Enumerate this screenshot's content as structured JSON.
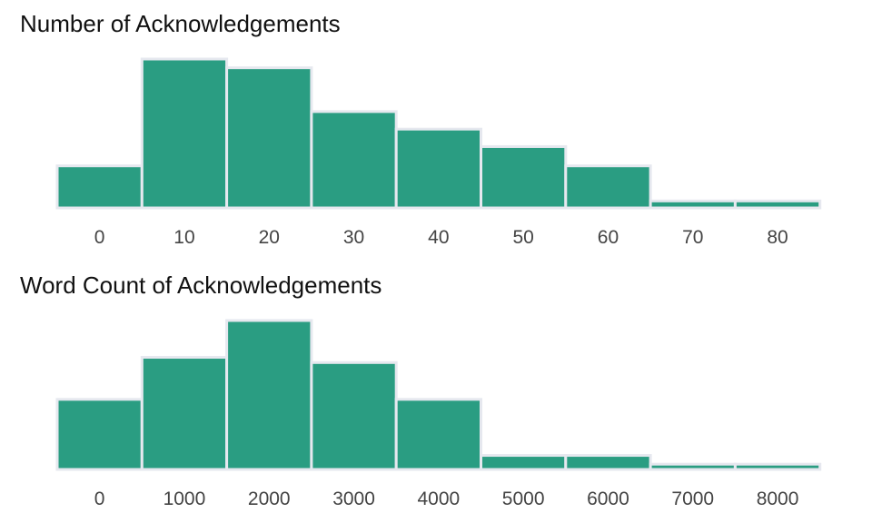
{
  "chart_data": [
    {
      "type": "bar",
      "title": "Number of Acknowledgements",
      "xlabel": "",
      "ylabel": "",
      "categories": [
        "0",
        "10",
        "20",
        "30",
        "40",
        "50",
        "60",
        "70",
        "80"
      ],
      "values": [
        24,
        85,
        80,
        55,
        45,
        35,
        24,
        4,
        4
      ],
      "ylim": [
        0,
        85
      ],
      "grid": false,
      "legend": "none",
      "bar_color": "#2a9d82",
      "edge_color": "#e6e8ef",
      "axis_color": "#e6e8ef"
    },
    {
      "type": "bar",
      "title": "Word Count of Acknowledgements",
      "xlabel": "",
      "ylabel": "",
      "categories": [
        "0",
        "1000",
        "2000",
        "3000",
        "4000",
        "5000",
        "6000",
        "7000",
        "8000"
      ],
      "values": [
        40,
        64,
        85,
        61,
        40,
        8,
        8,
        3,
        3
      ],
      "ylim": [
        0,
        85
      ],
      "grid": false,
      "legend": "none",
      "bar_color": "#2a9d82",
      "edge_color": "#e6e8ef",
      "axis_color": "#e6e8ef"
    }
  ]
}
